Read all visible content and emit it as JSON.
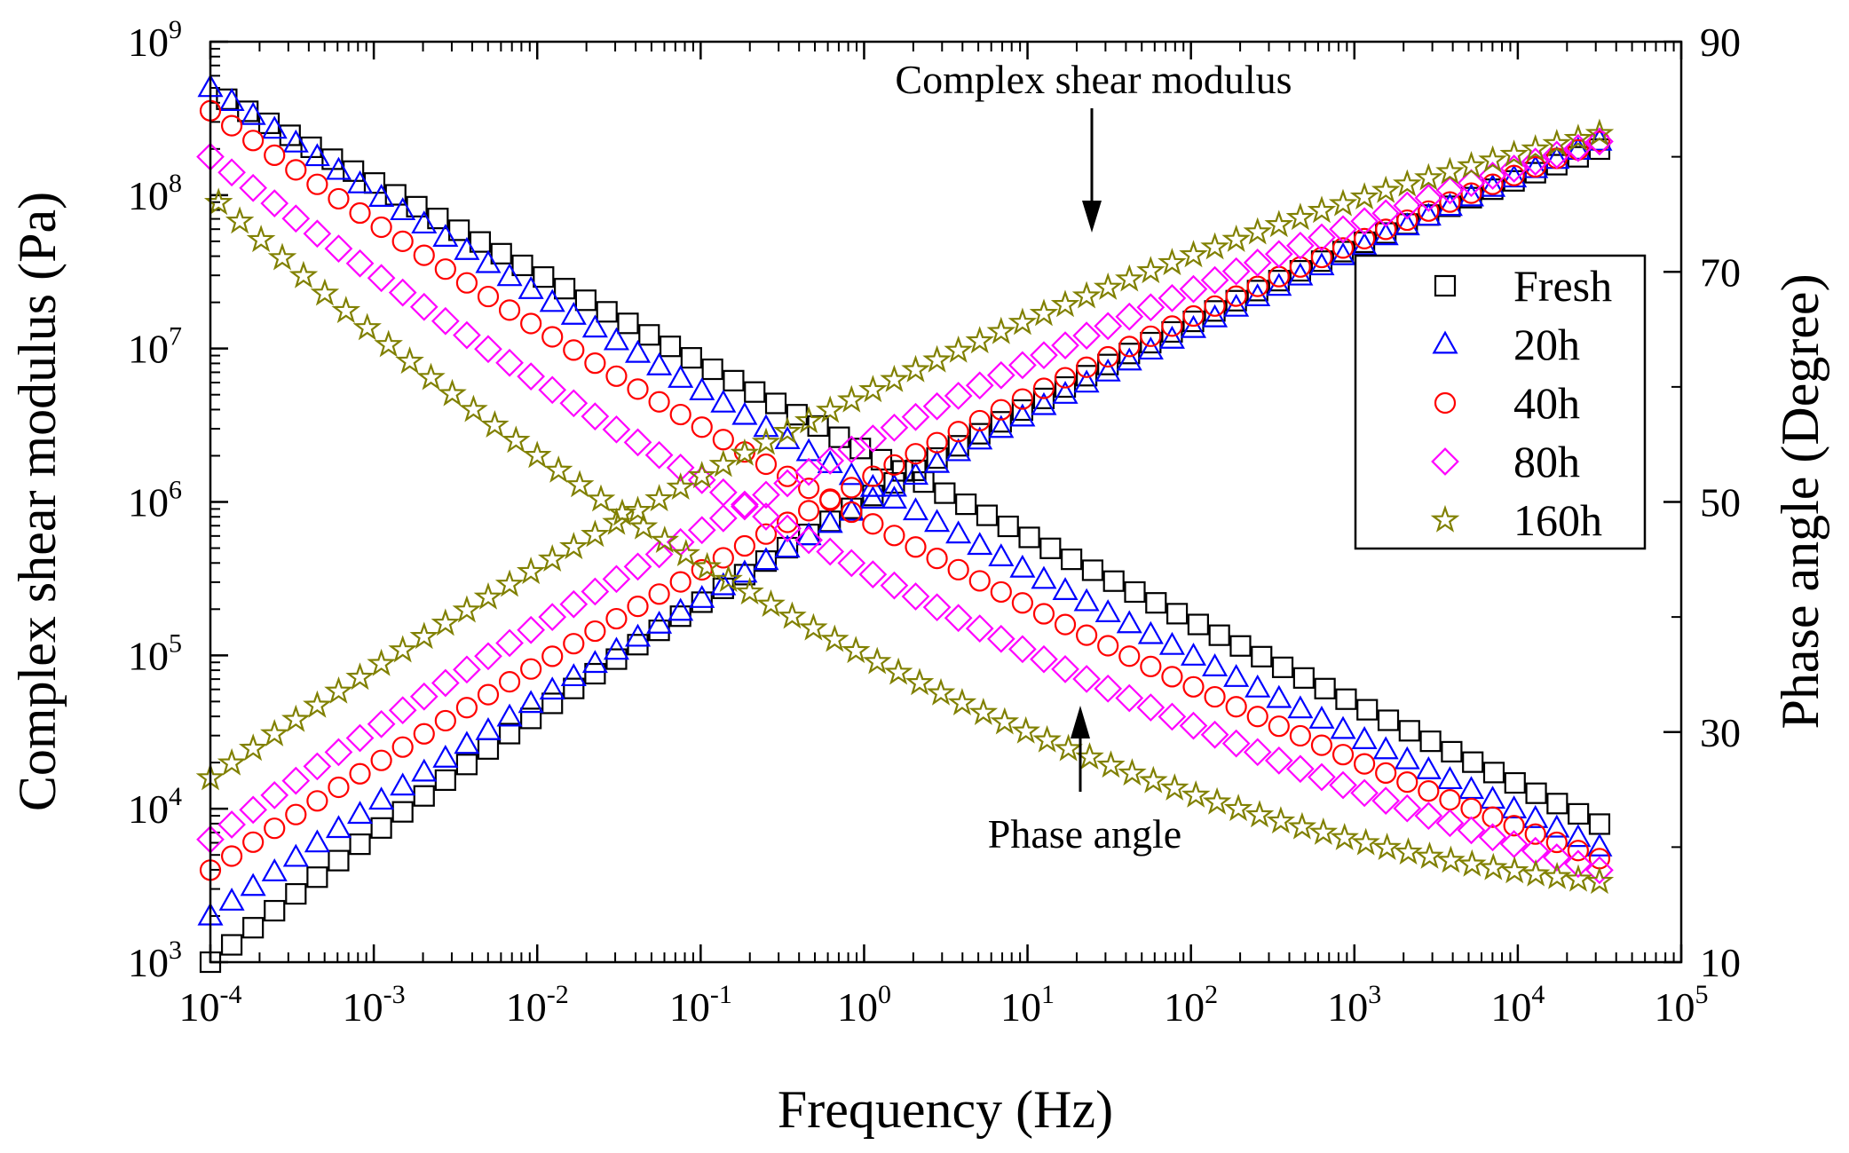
{
  "chart_data": {
    "type": "scatter",
    "title": "",
    "xlabel": "Frequency (Hz)",
    "ylabel": "Complex shear modulus (Pa)",
    "y2label": "Phase angle (Degree)",
    "x_scale": "log",
    "y_scale": "log",
    "xlim": [
      0.0001,
      100000
    ],
    "ylim": [
      1000,
      1000000000
    ],
    "y2lim": [
      10,
      90
    ],
    "x_ticks": [
      {
        "base": "10",
        "exp": "-4"
      },
      {
        "base": "10",
        "exp": "-3"
      },
      {
        "base": "10",
        "exp": "-2"
      },
      {
        "base": "10",
        "exp": "-1"
      },
      {
        "base": "10",
        "exp": "0"
      },
      {
        "base": "10",
        "exp": "1"
      },
      {
        "base": "10",
        "exp": "2"
      },
      {
        "base": "10",
        "exp": "3"
      },
      {
        "base": "10",
        "exp": "4"
      },
      {
        "base": "10",
        "exp": "5"
      }
    ],
    "y_ticks": [
      {
        "base": "10",
        "exp": "3"
      },
      {
        "base": "10",
        "exp": "4"
      },
      {
        "base": "10",
        "exp": "5"
      },
      {
        "base": "10",
        "exp": "6"
      },
      {
        "base": "10",
        "exp": "7"
      },
      {
        "base": "10",
        "exp": "8"
      },
      {
        "base": "10",
        "exp": "9"
      }
    ],
    "y2_ticks": [
      "10",
      "30",
      "50",
      "70",
      "90"
    ],
    "y2_tick_values": [
      10,
      30,
      50,
      70,
      90
    ],
    "legend_position": "right",
    "annotations": {
      "modulus": "Complex shear modulus",
      "phase": "Phase angle"
    },
    "series": [
      {
        "name": "Fresh",
        "marker": "square",
        "color": "#000000",
        "modulus": {
          "logx": [
            -4,
            1.5,
            4.5
          ],
          "logy": [
            3.0,
            6.9,
            8.3
          ]
        },
        "phase": {
          "logx": [
            -3.9,
            1.0,
            4.5
          ],
          "deg": [
            85.0,
            47.0,
            22.0
          ]
        }
      },
      {
        "name": "20h",
        "marker": "triangle",
        "color": "#0000ff",
        "modulus": {
          "logx": [
            -4,
            1.5,
            4.5
          ],
          "logy": [
            3.3,
            6.85,
            8.35
          ]
        },
        "phase": {
          "logx": [
            -4.0,
            1.0,
            4.5
          ],
          "deg": [
            86.0,
            44.0,
            20.0
          ]
        }
      },
      {
        "name": "40h",
        "marker": "circle",
        "color": "#ff0000",
        "modulus": {
          "logx": [
            -4,
            1.5,
            4.5
          ],
          "logy": [
            3.6,
            6.95,
            8.35
          ]
        },
        "phase": {
          "logx": [
            -4.0,
            1.0,
            4.5
          ],
          "deg": [
            84.0,
            41.0,
            19.0
          ]
        }
      },
      {
        "name": "80h",
        "marker": "diamond",
        "color": "#ff00ff",
        "modulus": {
          "logx": [
            -4,
            1.5,
            4.5
          ],
          "logy": [
            3.8,
            7.15,
            8.35
          ]
        },
        "phase": {
          "logx": [
            -4.0,
            1.0,
            4.5
          ],
          "deg": [
            80.0,
            37.0,
            18.0
          ]
        }
      },
      {
        "name": "160h",
        "marker": "star",
        "color": "#808000",
        "modulus": {
          "logx": [
            -4,
            1.5,
            4.5
          ],
          "logy": [
            4.2,
            7.4,
            8.4
          ]
        },
        "phase": {
          "logx": [
            -3.95,
            1.0,
            4.5
          ],
          "deg": [
            76.0,
            30.0,
            17.0
          ]
        }
      }
    ]
  }
}
